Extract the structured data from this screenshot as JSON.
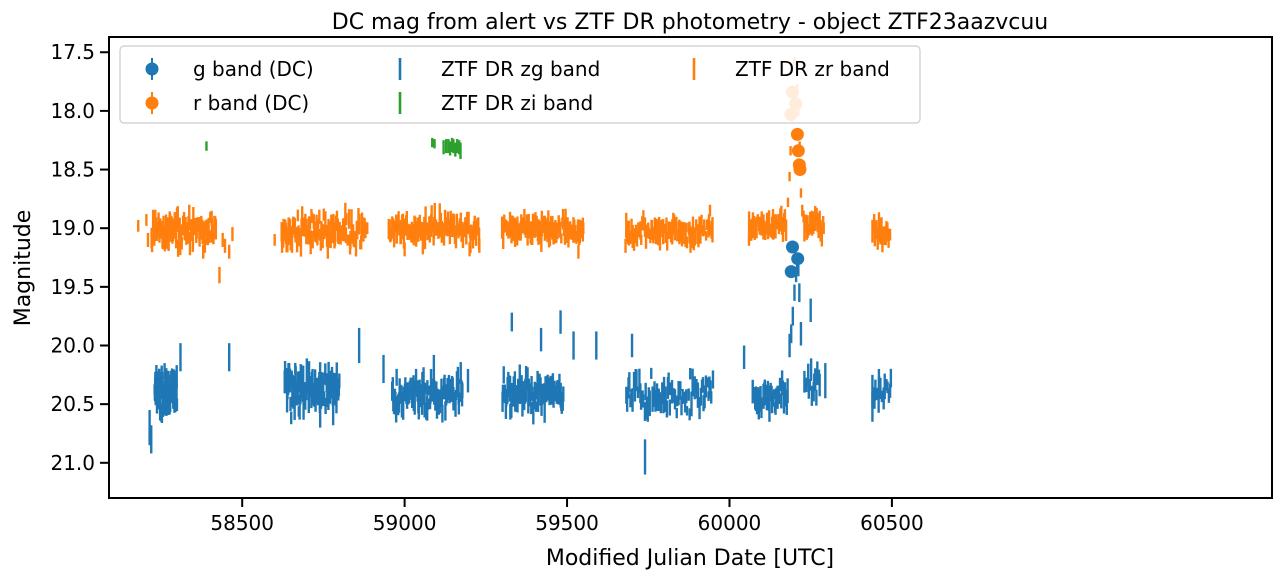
{
  "chart_data": {
    "type": "scatter",
    "title": "DC mag from alert vs ZTF DR photometry - object ZTF23aazvcuu",
    "xlabel": "Modified Julian Date [UTC]",
    "ylabel": "Magnitude",
    "xlim": [
      58090,
      61670
    ],
    "ylim": [
      21.3,
      17.37
    ],
    "y_inverted": true,
    "x_ticks": [
      58500,
      59000,
      59500,
      60000,
      60500
    ],
    "x_tick_labels": [
      "58500",
      "59000",
      "59500",
      "60000",
      "60500"
    ],
    "y_ticks": [
      17.5,
      18.0,
      18.5,
      19.0,
      19.5,
      20.0,
      20.5,
      21.0
    ],
    "y_tick_labels": [
      "17.5",
      "18.0",
      "18.5",
      "19.0",
      "19.5",
      "20.0",
      "20.5",
      "21.0"
    ],
    "grid": false,
    "legend_placement": "top-left",
    "legend": [
      {
        "label": "g band (DC)",
        "color": "#1f77b4",
        "marker": "circle-errorbar"
      },
      {
        "label": "ZTF DR zg band",
        "color": "#1f77b4",
        "marker": "vline"
      },
      {
        "label": "ZTF DR zr band",
        "color": "#ff7f0e",
        "marker": "vline"
      },
      {
        "label": "r band (DC)",
        "color": "#ff7f0e",
        "marker": "circle-errorbar"
      },
      {
        "label": "ZTF DR zi band",
        "color": "#2ca02c",
        "marker": "vline"
      }
    ],
    "series": [
      {
        "name": "g band (DC)",
        "color": "#1f77b4",
        "kind": "points",
        "x": [
          60190,
          60194,
          60210
        ],
        "y": [
          19.37,
          19.16,
          19.26
        ],
        "yerr": [
          0.05,
          0.05,
          0.05
        ]
      },
      {
        "name": "r band (DC)",
        "color": "#ff7f0e",
        "kind": "points",
        "x": [
          60189,
          60194,
          60204,
          60209,
          60212,
          60215,
          60217
        ],
        "y": [
          18.03,
          17.84,
          17.94,
          18.2,
          18.34,
          18.46,
          18.5
        ],
        "yerr": [
          0.03,
          0.03,
          0.03,
          0.03,
          0.03,
          0.03,
          0.03
        ]
      },
      {
        "name": "ZTF DR zi band",
        "color": "#2ca02c",
        "kind": "errorbars",
        "x": [
          58390,
          59085,
          59092,
          59120,
          59128,
          59135,
          59140,
          59146,
          59150,
          59156,
          59162,
          59168,
          59172
        ],
        "y": [
          18.3,
          18.27,
          18.28,
          18.31,
          18.3,
          18.3,
          18.32,
          18.29,
          18.3,
          18.33,
          18.3,
          18.31,
          18.34
        ],
        "yerr": [
          0.04,
          0.04,
          0.04,
          0.06,
          0.06,
          0.06,
          0.06,
          0.06,
          0.06,
          0.06,
          0.06,
          0.06,
          0.07
        ]
      },
      {
        "name": "ZTF DR zr band",
        "color": "#ff7f0e",
        "kind": "errorbars",
        "seasons": [
          {
            "start": 58220,
            "end": 58420,
            "mean": 19.02,
            "spread": 0.12,
            "n": 90
          },
          {
            "start": 58620,
            "end": 58880,
            "mean": 19.03,
            "spread": 0.13,
            "n": 110
          },
          {
            "start": 58950,
            "end": 59230,
            "mean": 19.01,
            "spread": 0.1,
            "n": 110
          },
          {
            "start": 59300,
            "end": 59550,
            "mean": 19.01,
            "spread": 0.08,
            "n": 90
          },
          {
            "start": 59680,
            "end": 59950,
            "mean": 19.02,
            "spread": 0.09,
            "n": 80
          },
          {
            "start": 60060,
            "end": 60175,
            "mean": 18.98,
            "spread": 0.07,
            "n": 40
          },
          {
            "start": 60230,
            "end": 60290,
            "mean": 18.98,
            "spread": 0.07,
            "n": 18
          },
          {
            "start": 60440,
            "end": 60495,
            "mean": 19.03,
            "spread": 0.08,
            "n": 18
          }
        ],
        "x": [
          58180,
          58205,
          58210,
          58380,
          58385,
          58430,
          58440,
          58447,
          58460,
          58470,
          58600,
          58885,
          59000,
          59200,
          59230,
          59340,
          59535,
          59550,
          59680,
          59880,
          59940,
          60060,
          60180,
          60185,
          60188,
          60192,
          60196,
          60200,
          60205,
          60208,
          60212,
          60216,
          60220,
          60224,
          60228,
          60290
        ],
        "y": [
          18.98,
          18.93,
          19.1,
          19.2,
          19.15,
          19.4,
          19.1,
          19.15,
          19.2,
          19.05,
          19.1,
          19.0,
          19.18,
          19.18,
          19.15,
          19.1,
          19.2,
          19.0,
          19.15,
          19.15,
          18.85,
          19.1,
          18.78,
          18.56,
          18.34,
          18.05,
          17.86,
          17.57,
          17.62,
          17.8,
          18.0,
          18.3,
          18.7,
          18.85,
          18.9,
          19.0
        ],
        "yerr": [
          0.05,
          0.05,
          0.06,
          0.06,
          0.06,
          0.07,
          0.06,
          0.06,
          0.06,
          0.06,
          0.05,
          0.05,
          0.06,
          0.06,
          0.06,
          0.06,
          0.06,
          0.05,
          0.06,
          0.06,
          0.05,
          0.05,
          0.04,
          0.04,
          0.04,
          0.04,
          0.04,
          0.03,
          0.03,
          0.03,
          0.04,
          0.04,
          0.04,
          0.05,
          0.05,
          0.05
        ]
      },
      {
        "name": "ZTF DR zg band",
        "color": "#1f77b4",
        "kind": "errorbars",
        "seasons": [
          {
            "start": 58230,
            "end": 58300,
            "mean": 20.4,
            "spread": 0.16,
            "n": 80
          },
          {
            "start": 58630,
            "end": 58800,
            "mean": 20.38,
            "spread": 0.16,
            "n": 110
          },
          {
            "start": 58960,
            "end": 59180,
            "mean": 20.42,
            "spread": 0.15,
            "n": 100
          },
          {
            "start": 59300,
            "end": 59490,
            "mean": 20.42,
            "spread": 0.16,
            "n": 90
          },
          {
            "start": 59680,
            "end": 59950,
            "mean": 20.42,
            "spread": 0.15,
            "n": 80
          },
          {
            "start": 60070,
            "end": 60180,
            "mean": 20.45,
            "spread": 0.13,
            "n": 40
          },
          {
            "start": 60230,
            "end": 60280,
            "mean": 20.3,
            "spread": 0.13,
            "n": 15
          },
          {
            "start": 60440,
            "end": 60500,
            "mean": 20.4,
            "spread": 0.1,
            "n": 15
          }
        ],
        "x": [
          58215,
          58220,
          58310,
          58460,
          58740,
          58780,
          58860,
          58935,
          59090,
          59195,
          59330,
          59420,
          59480,
          59520,
          59590,
          59700,
          59740,
          60045,
          60185,
          60190,
          60195,
          60200,
          60205,
          60208,
          60212,
          60215,
          60220,
          60250,
          60295,
          60440,
          60460
        ],
        "y": [
          20.7,
          20.8,
          20.1,
          20.1,
          20.5,
          20.5,
          20.0,
          20.2,
          20.2,
          20.3,
          19.8,
          19.95,
          19.8,
          20.0,
          20.0,
          20.0,
          20.95,
          20.1,
          20.0,
          19.9,
          19.75,
          19.55,
          19.4,
          19.3,
          19.35,
          19.55,
          19.9,
          19.7,
          20.3,
          20.45,
          20.3
        ],
        "yerr": [
          0.15,
          0.12,
          0.12,
          0.12,
          0.2,
          0.18,
          0.15,
          0.12,
          0.12,
          0.1,
          0.08,
          0.1,
          0.1,
          0.12,
          0.12,
          0.1,
          0.15,
          0.1,
          0.1,
          0.08,
          0.08,
          0.07,
          0.06,
          0.06,
          0.06,
          0.08,
          0.1,
          0.1,
          0.15,
          0.2,
          0.1
        ]
      }
    ]
  }
}
